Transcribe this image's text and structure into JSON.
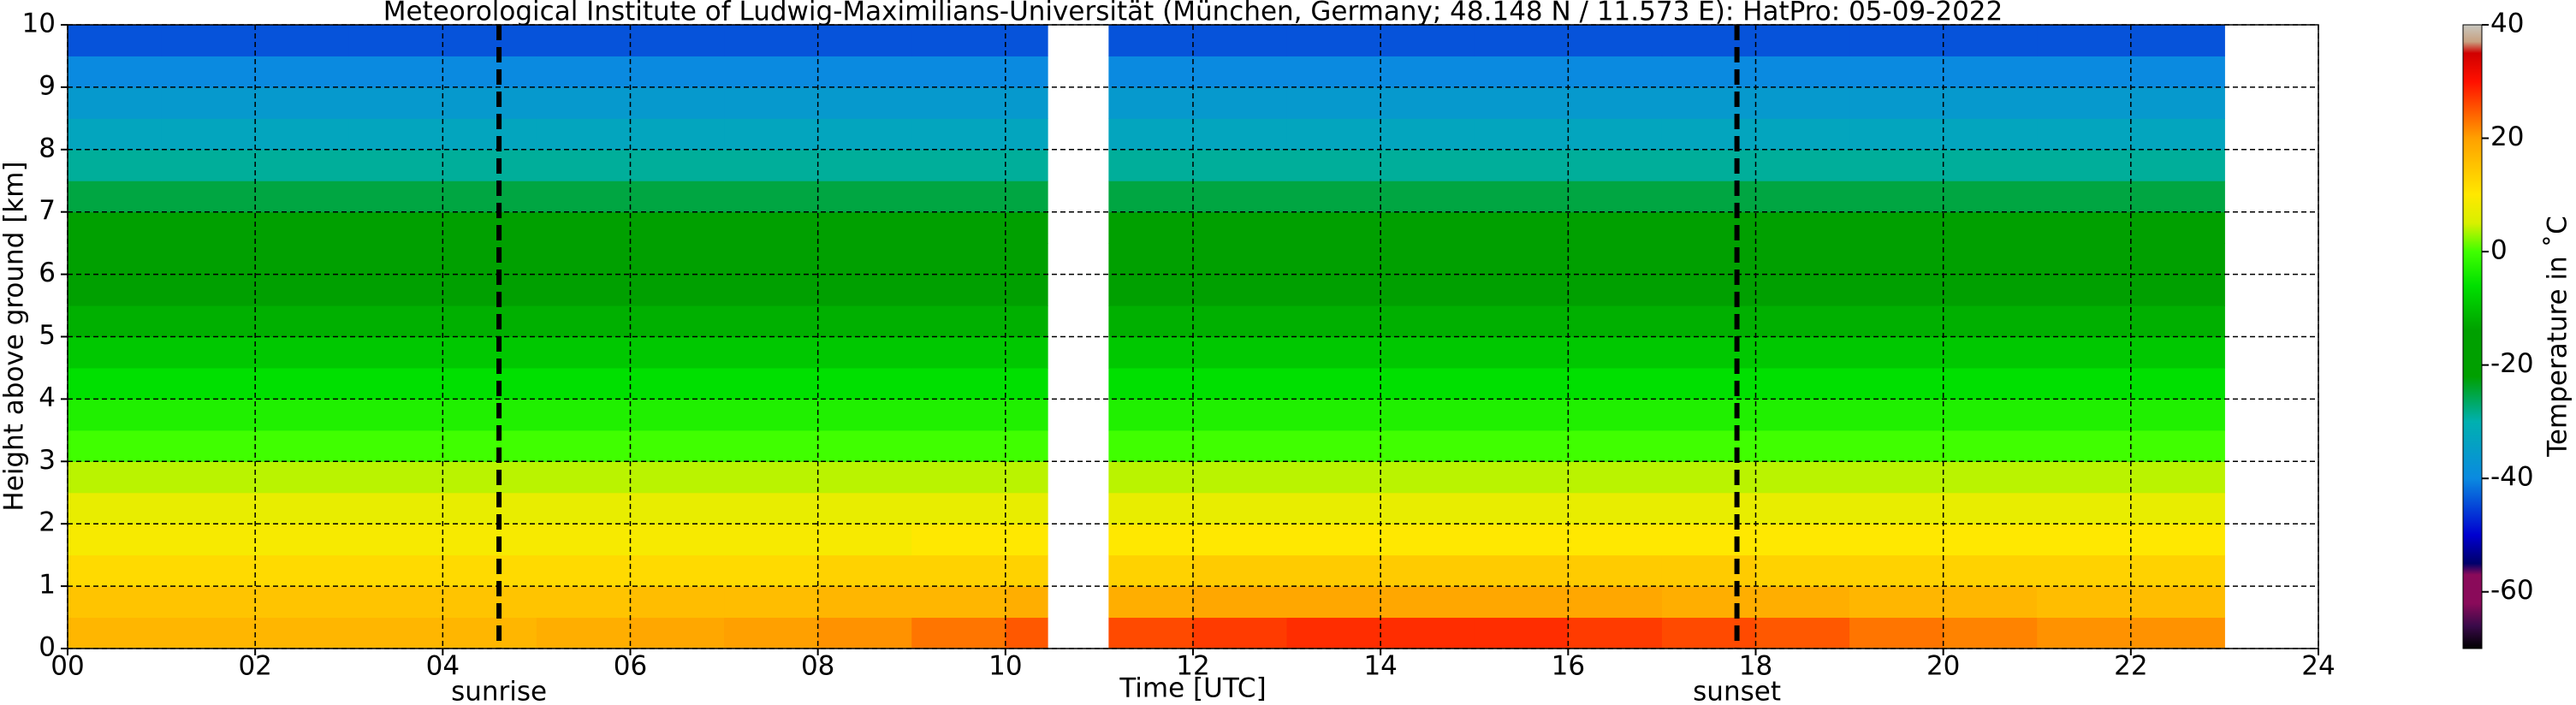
{
  "chart_data": {
    "type": "heatmap",
    "title": "Meteorological Institute of Ludwig-Maximilians-Universität (München, Germany; 48.148 N / 11.573 E):    HatPro: 05-09-2022",
    "xlabel": "Time [UTC]",
    "ylabel": "Height above ground [km]",
    "colorbar_label": "Temperature in ˚C",
    "xlim": [
      0,
      24
    ],
    "xticks": [
      {
        "value": 0,
        "label": "00"
      },
      {
        "value": 2,
        "label": "02"
      },
      {
        "value": 4,
        "label": "04"
      },
      {
        "value": 6,
        "label": "06"
      },
      {
        "value": 8,
        "label": "08"
      },
      10,
      12,
      14,
      16,
      18,
      20,
      22,
      24
    ],
    "ylim": [
      0,
      10
    ],
    "yticks": [
      0,
      1,
      2,
      3,
      4,
      5,
      6,
      7,
      8,
      9,
      10
    ],
    "clim": [
      -70,
      40
    ],
    "cticks": [
      -60,
      -40,
      -20,
      0,
      20,
      40
    ],
    "colorscale": [
      [
        -70,
        "#000000"
      ],
      [
        -66,
        "#3a0a4a"
      ],
      [
        -62,
        "#8a0a5a"
      ],
      [
        -57,
        "#8a0a5a"
      ],
      [
        -55,
        "#00006a"
      ],
      [
        -50,
        "#0000d0"
      ],
      [
        -40,
        "#0a8ae0"
      ],
      [
        -30,
        "#00b0b0"
      ],
      [
        -22,
        "#00a000"
      ],
      [
        -14,
        "#00a000"
      ],
      [
        -6,
        "#00e000"
      ],
      [
        0,
        "#40ff00"
      ],
      [
        5,
        "#d8f000"
      ],
      [
        10,
        "#ffe800"
      ],
      [
        20,
        "#ffa000"
      ],
      [
        30,
        "#ff1000"
      ],
      [
        35,
        "#d00000"
      ],
      [
        37,
        "#c8a080"
      ],
      [
        40,
        "#c8c8c0"
      ]
    ],
    "grid": true,
    "annotations": [
      {
        "text": "sunrise",
        "x": 4.6
      },
      {
        "text": "sunset",
        "x": 17.8
      }
    ],
    "x_edges": [
      0,
      1,
      2,
      3,
      4,
      5,
      6,
      7,
      8,
      9,
      10,
      10.45,
      11.1,
      12,
      13,
      14,
      15,
      16,
      17,
      18,
      19,
      20,
      21,
      22,
      23
    ],
    "y_edges": [
      0,
      0.5,
      1,
      1.5,
      2,
      2.5,
      3,
      3.5,
      4,
      4.5,
      5,
      5.5,
      6,
      6.5,
      7,
      7.5,
      8,
      8.5,
      9,
      9.5,
      10
    ],
    "z": [
      [
        17,
        17,
        17,
        17,
        17,
        18,
        19,
        20,
        21,
        23,
        25,
        null,
        26,
        27,
        28,
        28,
        28,
        27,
        26,
        25,
        23,
        22,
        21,
        21
      ],
      [
        15,
        15,
        15,
        15,
        15,
        15,
        16,
        16,
        17,
        17,
        18,
        null,
        18,
        19,
        19,
        19,
        19,
        19,
        18,
        18,
        17,
        17,
        16,
        16
      ],
      [
        12,
        12,
        12,
        12,
        12,
        12,
        12,
        12,
        13,
        13,
        13,
        null,
        13,
        14,
        14,
        14,
        14,
        14,
        14,
        13,
        13,
        13,
        13,
        13
      ],
      [
        9,
        9,
        9,
        9,
        9,
        9,
        9,
        9,
        9,
        10,
        10,
        null,
        10,
        10,
        10,
        10,
        10,
        10,
        10,
        10,
        10,
        10,
        10,
        10
      ],
      [
        7,
        7,
        7,
        7,
        7,
        7,
        7,
        7,
        7,
        7,
        7,
        null,
        7,
        7,
        7,
        7,
        7,
        7,
        7,
        7,
        7,
        7,
        7,
        7
      ],
      [
        4,
        4,
        4,
        4,
        4,
        4,
        4,
        4,
        4,
        4,
        4,
        null,
        4,
        4,
        4,
        4,
        4,
        4,
        4,
        4,
        4,
        4,
        4,
        4
      ],
      [
        0,
        0,
        0,
        0,
        0,
        0,
        0,
        0,
        0,
        0,
        0,
        null,
        0,
        0,
        0,
        0,
        0,
        0,
        0,
        0,
        0,
        0,
        0,
        0
      ],
      [
        -3,
        -3,
        -3,
        -3,
        -3,
        -3,
        -3,
        -3,
        -3,
        -3,
        -3,
        null,
        -3,
        -3,
        -3,
        -3,
        -3,
        -3,
        -3,
        -3,
        -3,
        -3,
        -3,
        -3
      ],
      [
        -6,
        -6,
        -6,
        -6,
        -6,
        -6,
        -6,
        -6,
        -6,
        -6,
        -6,
        null,
        -6,
        -6,
        -6,
        -6,
        -6,
        -6,
        -6,
        -6,
        -6,
        -6,
        -6,
        -6
      ],
      [
        -9,
        -9,
        -9,
        -9,
        -9,
        -9,
        -9,
        -9,
        -9,
        -9,
        -9,
        null,
        -9,
        -9,
        -9,
        -9,
        -9,
        -9,
        -9,
        -9,
        -9,
        -9,
        -9,
        -9
      ],
      [
        -12,
        -12,
        -12,
        -12,
        -12,
        -12,
        -12,
        -12,
        -12,
        -12,
        -12,
        null,
        -12,
        -12,
        -12,
        -12,
        -12,
        -12,
        -12,
        -12,
        -12,
        -12,
        -12,
        -12
      ],
      [
        -15,
        -15,
        -15,
        -15,
        -15,
        -15,
        -15,
        -15,
        -15,
        -15,
        -15,
        null,
        -15,
        -15,
        -15,
        -15,
        -15,
        -15,
        -15,
        -15,
        -15,
        -15,
        -15,
        -15
      ],
      [
        -18,
        -18,
        -18,
        -18,
        -18,
        -18,
        -18,
        -18,
        -18,
        -18,
        -18,
        null,
        -18,
        -18,
        -18,
        -18,
        -18,
        -18,
        -18,
        -18,
        -18,
        -18,
        -18,
        -18
      ],
      [
        -21,
        -21,
        -21,
        -21,
        -21,
        -21,
        -21,
        -21,
        -21,
        -21,
        -21,
        null,
        -21,
        -21,
        -21,
        -21,
        -21,
        -21,
        -21,
        -21,
        -21,
        -21,
        -21,
        -21
      ],
      [
        -25,
        -25,
        -25,
        -25,
        -25,
        -25,
        -25,
        -25,
        -25,
        -25,
        -25,
        null,
        -25,
        -25,
        -25,
        -25,
        -25,
        -25,
        -25,
        -25,
        -25,
        -25,
        -25,
        -25
      ],
      [
        -29,
        -29,
        -29,
        -29,
        -29,
        -29,
        -29,
        -29,
        -29,
        -29,
        -29,
        null,
        -29,
        -29,
        -29,
        -29,
        -29,
        -29,
        -29,
        -29,
        -29,
        -29,
        -29,
        -29
      ],
      [
        -33,
        -33,
        -33,
        -33,
        -33,
        -33,
        -33,
        -33,
        -33,
        -33,
        -33,
        null,
        -33,
        -33,
        -33,
        -33,
        -33,
        -33,
        -33,
        -33,
        -33,
        -33,
        -33,
        -33
      ],
      [
        -36,
        -36,
        -36,
        -36,
        -36,
        -36,
        -36,
        -36,
        -36,
        -36,
        -36,
        null,
        -36,
        -36,
        -36,
        -36,
        -36,
        -36,
        -36,
        -36,
        -36,
        -36,
        -36,
        -36
      ],
      [
        -40,
        -40,
        -40,
        -40,
        -40,
        -40,
        -40,
        -40,
        -40,
        -40,
        -40,
        null,
        -40,
        -40,
        -40,
        -40,
        -40,
        -40,
        -40,
        -40,
        -40,
        -40,
        -40,
        -40
      ],
      [
        -44,
        -44,
        -44,
        -44,
        -44,
        -44,
        -44,
        -44,
        -44,
        -44,
        -44,
        null,
        -44,
        -44,
        -44,
        -44,
        -44,
        -44,
        -44,
        -44,
        -44,
        -44,
        -44,
        -44
      ]
    ]
  }
}
